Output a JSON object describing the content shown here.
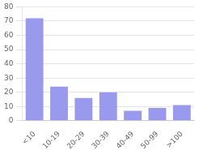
{
  "chart_data": {
    "type": "bar",
    "categories": [
      "<10",
      "10-19",
      "20-29",
      "30-39",
      "40-49",
      "50-99",
      ">100"
    ],
    "values": [
      72,
      24,
      16,
      20,
      7,
      9,
      11
    ],
    "color": "#9999ee",
    "ylim": [
      0,
      80
    ],
    "yticks": [
      0,
      10,
      20,
      30,
      40,
      50,
      60,
      70,
      80
    ],
    "grid": true
  }
}
